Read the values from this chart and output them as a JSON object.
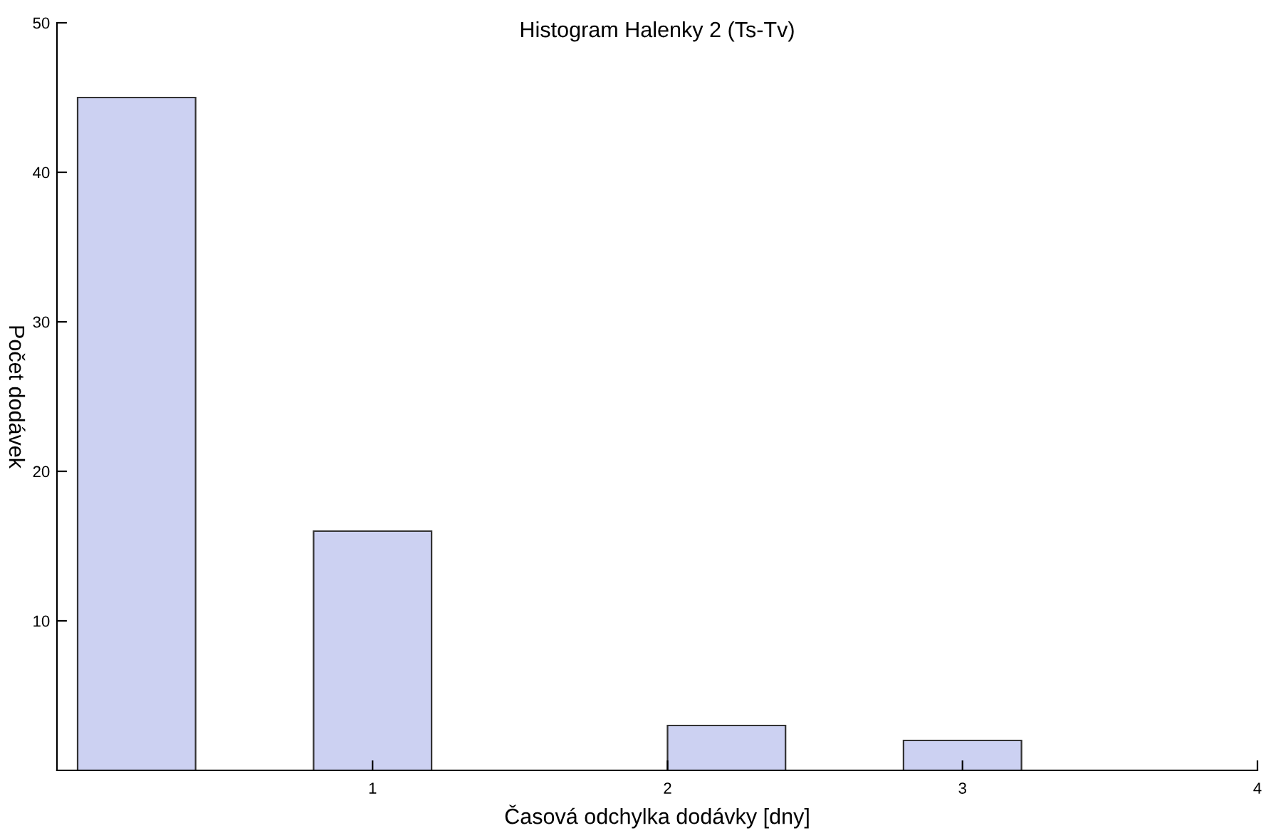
{
  "chart_data": {
    "type": "histogram",
    "title": "Histogram Halenky 2 (Ts-Tv)",
    "xlabel": "Časová odchylka dodávky [dny]",
    "ylabel": "Počet dodávek",
    "bins": [
      0,
      0.4,
      0.8,
      1.2,
      1.6,
      2.0,
      2.4,
      2.8,
      3.2
    ],
    "values": [
      45,
      0,
      16,
      0,
      0,
      3,
      0,
      2
    ],
    "color": "#ccd1f2",
    "xlim": [
      -0.07,
      4.0
    ],
    "ylim": [
      0,
      50
    ],
    "xticks": [
      1,
      2,
      3,
      4
    ],
    "yticks": [
      10,
      20,
      30,
      40,
      50
    ],
    "grid": false
  }
}
